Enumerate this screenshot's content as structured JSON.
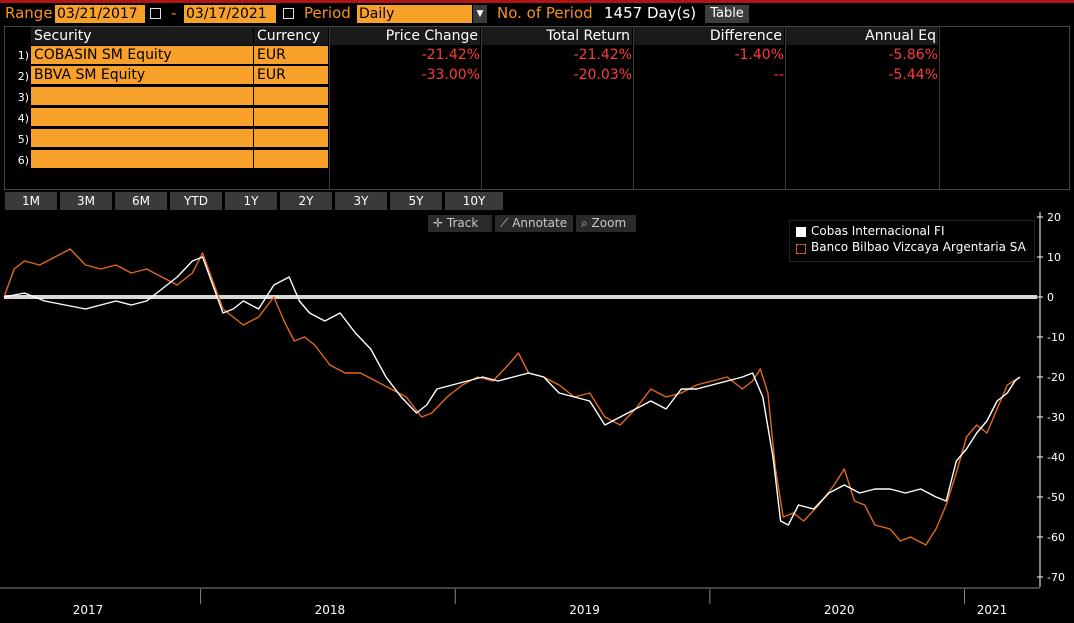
{
  "toolbar": {
    "range_label": "Range",
    "start_date": "03/21/2017",
    "dash": "-",
    "end_date": "03/17/2021",
    "period_label": "Period",
    "period_value": "Daily",
    "num_period_label": "No. of Period",
    "num_period_value": "1457 Day(s)",
    "table_button": "Table"
  },
  "grid": {
    "headers": [
      "Security",
      "Currency",
      "Price Change",
      "Total Return",
      "Difference",
      "Annual Eq"
    ],
    "rows": [
      {
        "num": "1)",
        "security": "COBASIN SM Equity",
        "currency": "EUR",
        "price_change": "-21.42%",
        "total_return": "-21.42%",
        "difference": "-1.40%",
        "annual_eq": "-5.86%"
      },
      {
        "num": "2)",
        "security": "BBVA SM Equity",
        "currency": "EUR",
        "price_change": "-33.00%",
        "total_return": "-20.03%",
        "difference": "--",
        "annual_eq": "-5.44%"
      },
      {
        "num": "3)",
        "security": "",
        "currency": ""
      },
      {
        "num": "4)",
        "security": "",
        "currency": ""
      },
      {
        "num": "5)",
        "security": "",
        "currency": ""
      },
      {
        "num": "6)",
        "security": "",
        "currency": ""
      }
    ]
  },
  "periods": [
    "1M",
    "3M",
    "6M",
    "YTD",
    "1Y",
    "2Y",
    "3Y",
    "5Y",
    "10Y"
  ],
  "chart_tools": {
    "track": "Track",
    "annotate": "Annotate",
    "zoom": "Zoom"
  },
  "chart_data": {
    "type": "line",
    "x_labels": [
      "2017",
      "2018",
      "2019",
      "2020",
      "2021"
    ],
    "yticks": [
      20,
      10,
      0,
      -10,
      -20,
      -30,
      -40,
      -50,
      -60,
      -70
    ],
    "ylim": [
      -72,
      21
    ],
    "xlim": [
      2017.22,
      2021.21
    ],
    "series": [
      {
        "name": "Cobas Internacional FI",
        "color": "#ffffff",
        "points": [
          [
            2017.22,
            0
          ],
          [
            2017.3,
            1
          ],
          [
            2017.38,
            -1
          ],
          [
            2017.46,
            -2
          ],
          [
            2017.54,
            -3
          ],
          [
            2017.6,
            -2
          ],
          [
            2017.66,
            -1
          ],
          [
            2017.72,
            -2
          ],
          [
            2017.78,
            -1
          ],
          [
            2017.84,
            2
          ],
          [
            2017.9,
            5
          ],
          [
            2017.96,
            9
          ],
          [
            2018.0,
            10
          ],
          [
            2018.04,
            3
          ],
          [
            2018.08,
            -4
          ],
          [
            2018.12,
            -3
          ],
          [
            2018.16,
            -1
          ],
          [
            2018.22,
            -3
          ],
          [
            2018.28,
            3
          ],
          [
            2018.34,
            5
          ],
          [
            2018.38,
            -1
          ],
          [
            2018.42,
            -4
          ],
          [
            2018.48,
            -6
          ],
          [
            2018.54,
            -4
          ],
          [
            2018.6,
            -9
          ],
          [
            2018.66,
            -13
          ],
          [
            2018.72,
            -20
          ],
          [
            2018.78,
            -25
          ],
          [
            2018.84,
            -29
          ],
          [
            2018.88,
            -27
          ],
          [
            2018.92,
            -23
          ],
          [
            2018.98,
            -22
          ],
          [
            2019.04,
            -21
          ],
          [
            2019.1,
            -20
          ],
          [
            2019.16,
            -21
          ],
          [
            2019.22,
            -20
          ],
          [
            2019.28,
            -19
          ],
          [
            2019.34,
            -20
          ],
          [
            2019.4,
            -24
          ],
          [
            2019.46,
            -25
          ],
          [
            2019.52,
            -26
          ],
          [
            2019.58,
            -32
          ],
          [
            2019.64,
            -30
          ],
          [
            2019.7,
            -28
          ],
          [
            2019.76,
            -26
          ],
          [
            2019.82,
            -28
          ],
          [
            2019.88,
            -23
          ],
          [
            2019.94,
            -23
          ],
          [
            2020.0,
            -22
          ],
          [
            2020.06,
            -21
          ],
          [
            2020.12,
            -20
          ],
          [
            2020.16,
            -19
          ],
          [
            2020.2,
            -25
          ],
          [
            2020.24,
            -40
          ],
          [
            2020.27,
            -56
          ],
          [
            2020.3,
            -57
          ],
          [
            2020.34,
            -52
          ],
          [
            2020.4,
            -53
          ],
          [
            2020.46,
            -49
          ],
          [
            2020.52,
            -47
          ],
          [
            2020.58,
            -49
          ],
          [
            2020.64,
            -48
          ],
          [
            2020.7,
            -48
          ],
          [
            2020.76,
            -49
          ],
          [
            2020.82,
            -48
          ],
          [
            2020.88,
            -50
          ],
          [
            2020.92,
            -51
          ],
          [
            2020.96,
            -41
          ],
          [
            2021.0,
            -38
          ],
          [
            2021.04,
            -34
          ],
          [
            2021.08,
            -31
          ],
          [
            2021.12,
            -26
          ],
          [
            2021.16,
            -24
          ],
          [
            2021.19,
            -21
          ],
          [
            2021.21,
            -20
          ]
        ]
      },
      {
        "name": "Banco Bilbao Vizcaya Argentaria SA",
        "color": "#e0691a",
        "points": [
          [
            2017.22,
            0
          ],
          [
            2017.26,
            7
          ],
          [
            2017.3,
            9
          ],
          [
            2017.36,
            8
          ],
          [
            2017.42,
            10
          ],
          [
            2017.48,
            12
          ],
          [
            2017.54,
            8
          ],
          [
            2017.6,
            7
          ],
          [
            2017.66,
            8
          ],
          [
            2017.72,
            6
          ],
          [
            2017.78,
            7
          ],
          [
            2017.84,
            5
          ],
          [
            2017.9,
            3
          ],
          [
            2017.96,
            6
          ],
          [
            2018.0,
            11
          ],
          [
            2018.04,
            4
          ],
          [
            2018.08,
            -3
          ],
          [
            2018.12,
            -5
          ],
          [
            2018.16,
            -7
          ],
          [
            2018.22,
            -5
          ],
          [
            2018.28,
            0
          ],
          [
            2018.32,
            -6
          ],
          [
            2018.36,
            -11
          ],
          [
            2018.4,
            -10
          ],
          [
            2018.44,
            -12
          ],
          [
            2018.5,
            -17
          ],
          [
            2018.56,
            -19
          ],
          [
            2018.62,
            -19
          ],
          [
            2018.68,
            -21
          ],
          [
            2018.74,
            -23
          ],
          [
            2018.8,
            -25
          ],
          [
            2018.86,
            -30
          ],
          [
            2018.9,
            -29
          ],
          [
            2018.96,
            -25
          ],
          [
            2019.02,
            -22
          ],
          [
            2019.08,
            -20
          ],
          [
            2019.14,
            -21
          ],
          [
            2019.2,
            -17
          ],
          [
            2019.24,
            -14
          ],
          [
            2019.28,
            -19
          ],
          [
            2019.34,
            -20
          ],
          [
            2019.4,
            -22
          ],
          [
            2019.46,
            -25
          ],
          [
            2019.52,
            -24
          ],
          [
            2019.58,
            -30
          ],
          [
            2019.64,
            -32
          ],
          [
            2019.7,
            -28
          ],
          [
            2019.76,
            -23
          ],
          [
            2019.82,
            -25
          ],
          [
            2019.88,
            -24
          ],
          [
            2019.94,
            -22
          ],
          [
            2020.0,
            -21
          ],
          [
            2020.06,
            -20
          ],
          [
            2020.12,
            -23
          ],
          [
            2020.16,
            -21
          ],
          [
            2020.19,
            -18
          ],
          [
            2020.22,
            -24
          ],
          [
            2020.25,
            -43
          ],
          [
            2020.28,
            -55
          ],
          [
            2020.32,
            -54
          ],
          [
            2020.36,
            -56
          ],
          [
            2020.42,
            -52
          ],
          [
            2020.48,
            -47
          ],
          [
            2020.52,
            -43
          ],
          [
            2020.56,
            -51
          ],
          [
            2020.6,
            -52
          ],
          [
            2020.64,
            -57
          ],
          [
            2020.7,
            -58
          ],
          [
            2020.74,
            -61
          ],
          [
            2020.78,
            -60
          ],
          [
            2020.84,
            -62
          ],
          [
            2020.88,
            -58
          ],
          [
            2020.92,
            -52
          ],
          [
            2020.96,
            -44
          ],
          [
            2021.0,
            -35
          ],
          [
            2021.04,
            -32
          ],
          [
            2021.08,
            -34
          ],
          [
            2021.12,
            -28
          ],
          [
            2021.16,
            -22
          ],
          [
            2021.21,
            -20
          ]
        ]
      }
    ]
  }
}
